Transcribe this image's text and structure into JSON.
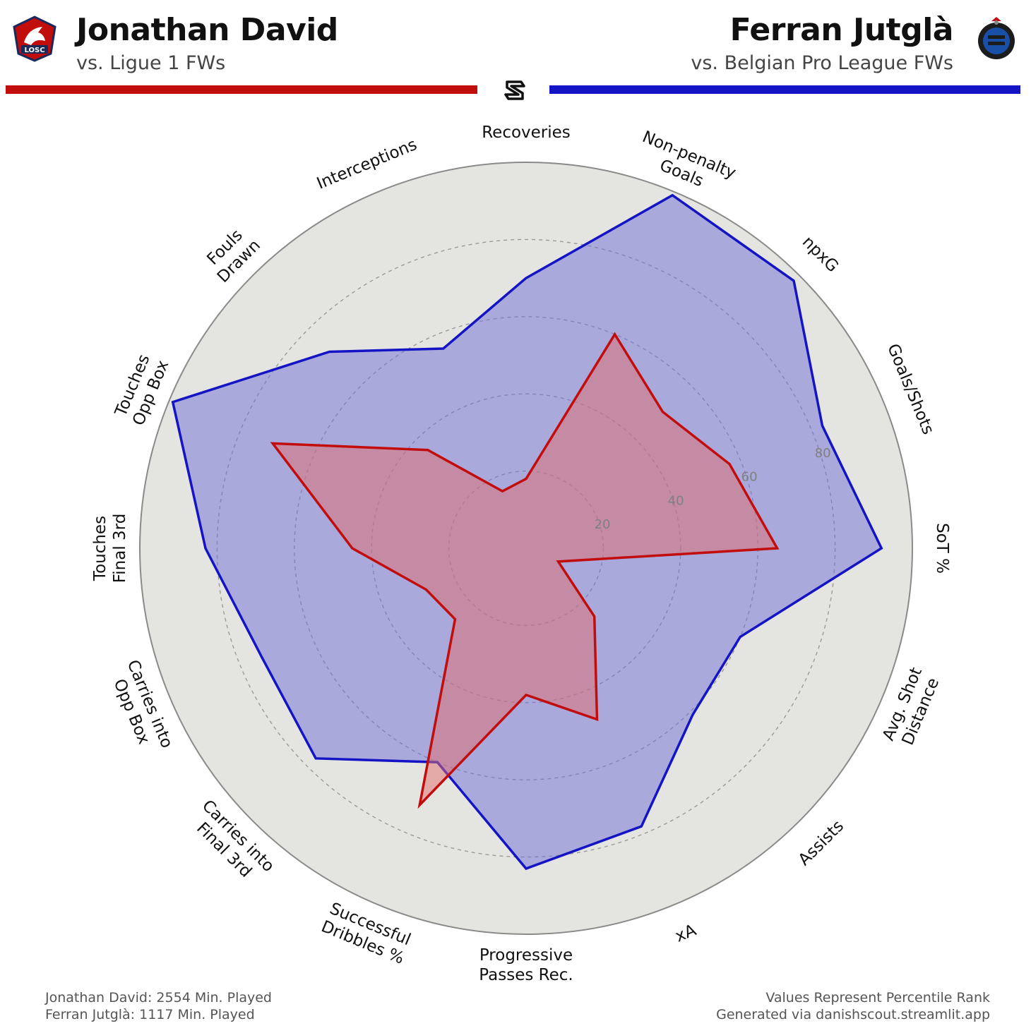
{
  "header": {
    "left": {
      "name": "Jonathan David",
      "comparison": "vs. Ligue 1 FWs",
      "color": "#c20d0d",
      "logo_text": "LOSC",
      "logo_icon": "lille-club-crest-icon"
    },
    "right": {
      "name": "Ferran Jutglà",
      "comparison": "vs. Belgian Pro League FWs",
      "color": "#1414c4",
      "logo_icon": "club-brugge-crest-icon"
    },
    "center_icon": "danishscout-logo-icon"
  },
  "chart_data": {
    "type": "radar",
    "categories": [
      [
        "Recoveries"
      ],
      [
        "Non-penalty",
        "Goals"
      ],
      [
        "npxG"
      ],
      [
        "Goals/Shots"
      ],
      [
        "SoT %"
      ],
      [
        "Avg. Shot",
        "Distance"
      ],
      [
        "Assists"
      ],
      [
        "xA"
      ],
      [
        "Progressive",
        "Passes Rec."
      ],
      [
        "Successful",
        "Dribbles %"
      ],
      [
        "Carries into",
        "Final 3rd"
      ],
      [
        "Carries into",
        "Opp Box"
      ],
      [
        "Touches",
        "Final 3rd"
      ],
      [
        "Touches",
        "Opp Box"
      ],
      [
        "Fouls",
        "Drawn"
      ],
      [
        "Interceptions"
      ]
    ],
    "series": [
      {
        "name": "Jonathan David",
        "color": "#c20d0d",
        "fill": "rgba(225,110,110,0.5)",
        "values": [
          18,
          60,
          50,
          57,
          65,
          9,
          25,
          48,
          38,
          72,
          26,
          28,
          45,
          71,
          36,
          16
        ]
      },
      {
        "name": "Ferran Jutglà",
        "color": "#1414c4",
        "fill": "rgba(110,110,215,0.5)",
        "values": [
          70,
          99,
          98,
          83,
          92,
          60,
          61,
          78,
          83,
          60,
          77,
          74,
          83,
          99,
          72,
          56
        ]
      }
    ],
    "rlim": [
      0,
      100
    ],
    "rticks": [
      20,
      40,
      60,
      80
    ],
    "grid": true,
    "background": "#e4e4e1"
  },
  "footer": {
    "left_line1": "Jonathan David: 2554 Min. Played",
    "left_line2": "Ferran Jutglà: 1117 Min. Played",
    "right_line1": "Values Represent Percentile Rank",
    "right_line2": "Generated via danishscout.streamlit.app"
  }
}
